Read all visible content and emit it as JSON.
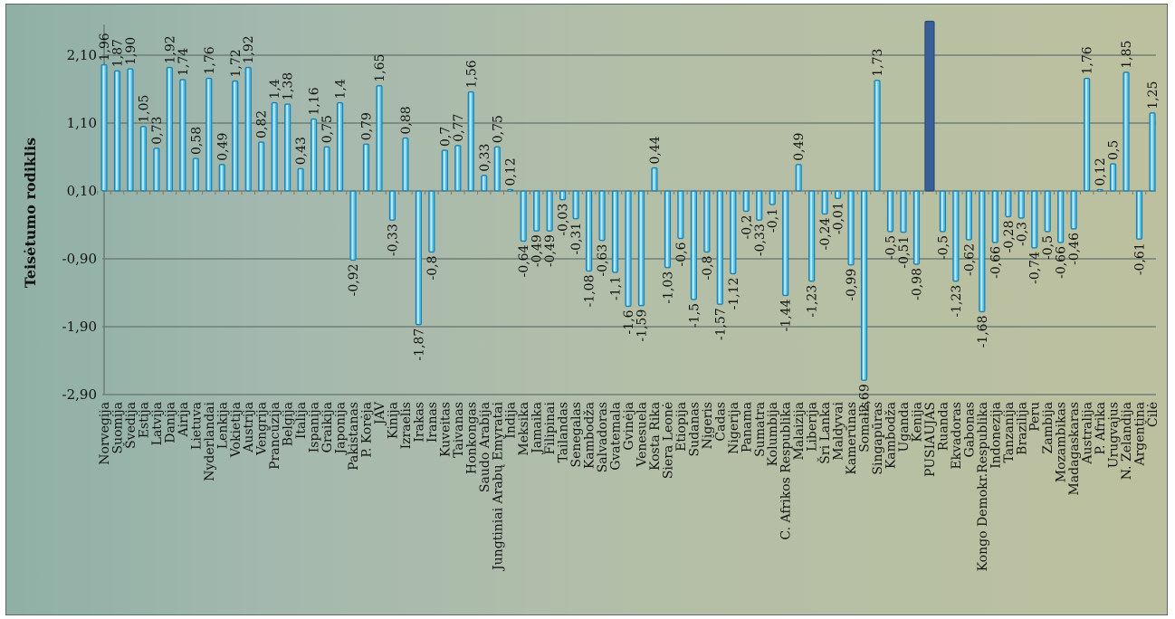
{
  "chart_data": {
    "type": "bar",
    "ylabel": "Teisėtumo rodiklis",
    "y_ticks": [
      "2,10",
      "1,10",
      "0,10",
      "-0,90",
      "-1,90",
      "-2,90"
    ],
    "ylim": [
      -2.9,
      2.6
    ],
    "baseline": 0.1,
    "grid": true,
    "colors": {
      "bar": "#4fc0e8",
      "bar_edge": "#1f7fae",
      "highlight": "#3a5f96",
      "grid": "#6f7f78"
    },
    "categories": [
      "Norvegija",
      "Suomija",
      "Švedija",
      "Estija",
      "Latvija",
      "Danija",
      "Airija",
      "Lietuva",
      "Nyderlandai",
      "Lenkija",
      "Vokietija",
      "Austrija",
      "Vengrija",
      "Prancūzija",
      "Belgija",
      "Italija",
      "Ispanija",
      "Graikija",
      "Japonija",
      "Pakistanas",
      "P. Korėja",
      "JAV",
      "Kinija",
      "Izraelis",
      "Irakas",
      "Iranas",
      "Kuveitas",
      "Taivanas",
      "Honkongas",
      "Saudo Arabija",
      "Jungtiniai Arabų Emyratai",
      "Indija",
      "Meksika",
      "Jamaika",
      "Filipinai",
      "Tailandas",
      "Senegalas",
      "Kambodža",
      "Salvadoras",
      "Gvatemala",
      "Gvinėja",
      "Venesuela",
      "Kosta Rika",
      "Siera Leonė",
      "Etiopija",
      "Sudanas",
      "Nigeris",
      "Čadas",
      "Nigerija",
      "Panama",
      "Sumatra",
      "Kolumbija",
      "C. Afrikos Respublika",
      "Malaizija",
      "Liberija",
      "Šri Lanka",
      "Maldyvai",
      "Kamerūnas",
      "Somalis",
      "Singapūras",
      "Kambodža",
      "Uganda",
      "Kenija",
      "PUSIAUJAS",
      "Ruanda",
      "Ekvadoras",
      "Gabonas",
      "Kongo Demokr.Respublika",
      "Indonezija",
      "Tanzanija",
      "Brazilija",
      "Peru",
      "Zambija",
      "Mozambikas",
      "Madagaskaras",
      "Australija",
      "P. Afrika",
      "Urugvajus",
      "N. Zelandija",
      "Argentina",
      "Čilė"
    ],
    "values": [
      1.96,
      1.87,
      1.9,
      1.05,
      0.73,
      1.92,
      1.74,
      0.58,
      1.76,
      0.49,
      1.72,
      1.92,
      0.82,
      1.4,
      1.38,
      0.43,
      1.16,
      0.75,
      1.4,
      -0.92,
      0.79,
      1.65,
      -0.33,
      0.88,
      -1.87,
      -0.8,
      0.7,
      0.77,
      1.56,
      0.33,
      0.75,
      0.12,
      -0.64,
      -0.49,
      -0.49,
      -0.03,
      -0.31,
      -1.08,
      -0.63,
      -1.1,
      -1.6,
      -1.59,
      0.44,
      -1.03,
      -0.6,
      -1.5,
      -0.8,
      -1.57,
      -1.12,
      -0.2,
      -0.33,
      -0.1,
      -1.44,
      0.49,
      -1.23,
      -0.24,
      -0.01,
      -0.99,
      -2.69,
      1.73,
      -0.5,
      -0.51,
      -0.98,
      2.6,
      -0.5,
      -1.23,
      -0.62,
      -1.68,
      -0.66,
      -0.28,
      -0.3,
      -0.74,
      -0.5,
      -0.66,
      -0.46,
      1.76,
      0.12,
      0.5,
      1.85,
      -0.61,
      1.25
    ],
    "value_labels": [
      "1,96",
      "1,87",
      "1,90",
      "1,05",
      "0,73",
      "1,92",
      "1,74",
      "0,58",
      "1,76",
      "0,49",
      "1,72",
      "1,92",
      "0,82",
      "1,4",
      "1,38",
      "0,43",
      "1,16",
      "0,75",
      "1,4",
      "-0,92",
      "0,79",
      "1,65",
      "-0,33",
      "0,88",
      "-1,87",
      "-0,8",
      "0,7",
      "0,77",
      "1,56",
      "0,33",
      "0,75",
      "0,12",
      "-0,64",
      "-0,49",
      "-0,49",
      "-0,03",
      "-0,31",
      "-1,08",
      "-0,63",
      "-1,1",
      "-1,6",
      "-1,59",
      "0,44",
      "-1,03",
      "-0,6",
      "-1,5",
      "-0,8",
      "-1,57",
      "-1,12",
      "-0,2",
      "-0,33",
      "-0,1",
      "-1,44",
      "0,49",
      "-1,23",
      "-0,24",
      "-0,01",
      "-0,99",
      "-2,69",
      "1,73",
      "-0,5",
      "-0,51",
      "-0,98",
      "",
      "-0,5",
      "-1,23",
      "-0,62",
      "-1,68",
      "-0,66",
      "-0,28",
      "-0,3",
      "-0,74",
      "-0,5",
      "-0,66",
      "-0,46",
      "1,76",
      "0,12",
      "0,5",
      "1,85",
      "-0,61",
      "1,25"
    ],
    "highlight_index": 63
  }
}
